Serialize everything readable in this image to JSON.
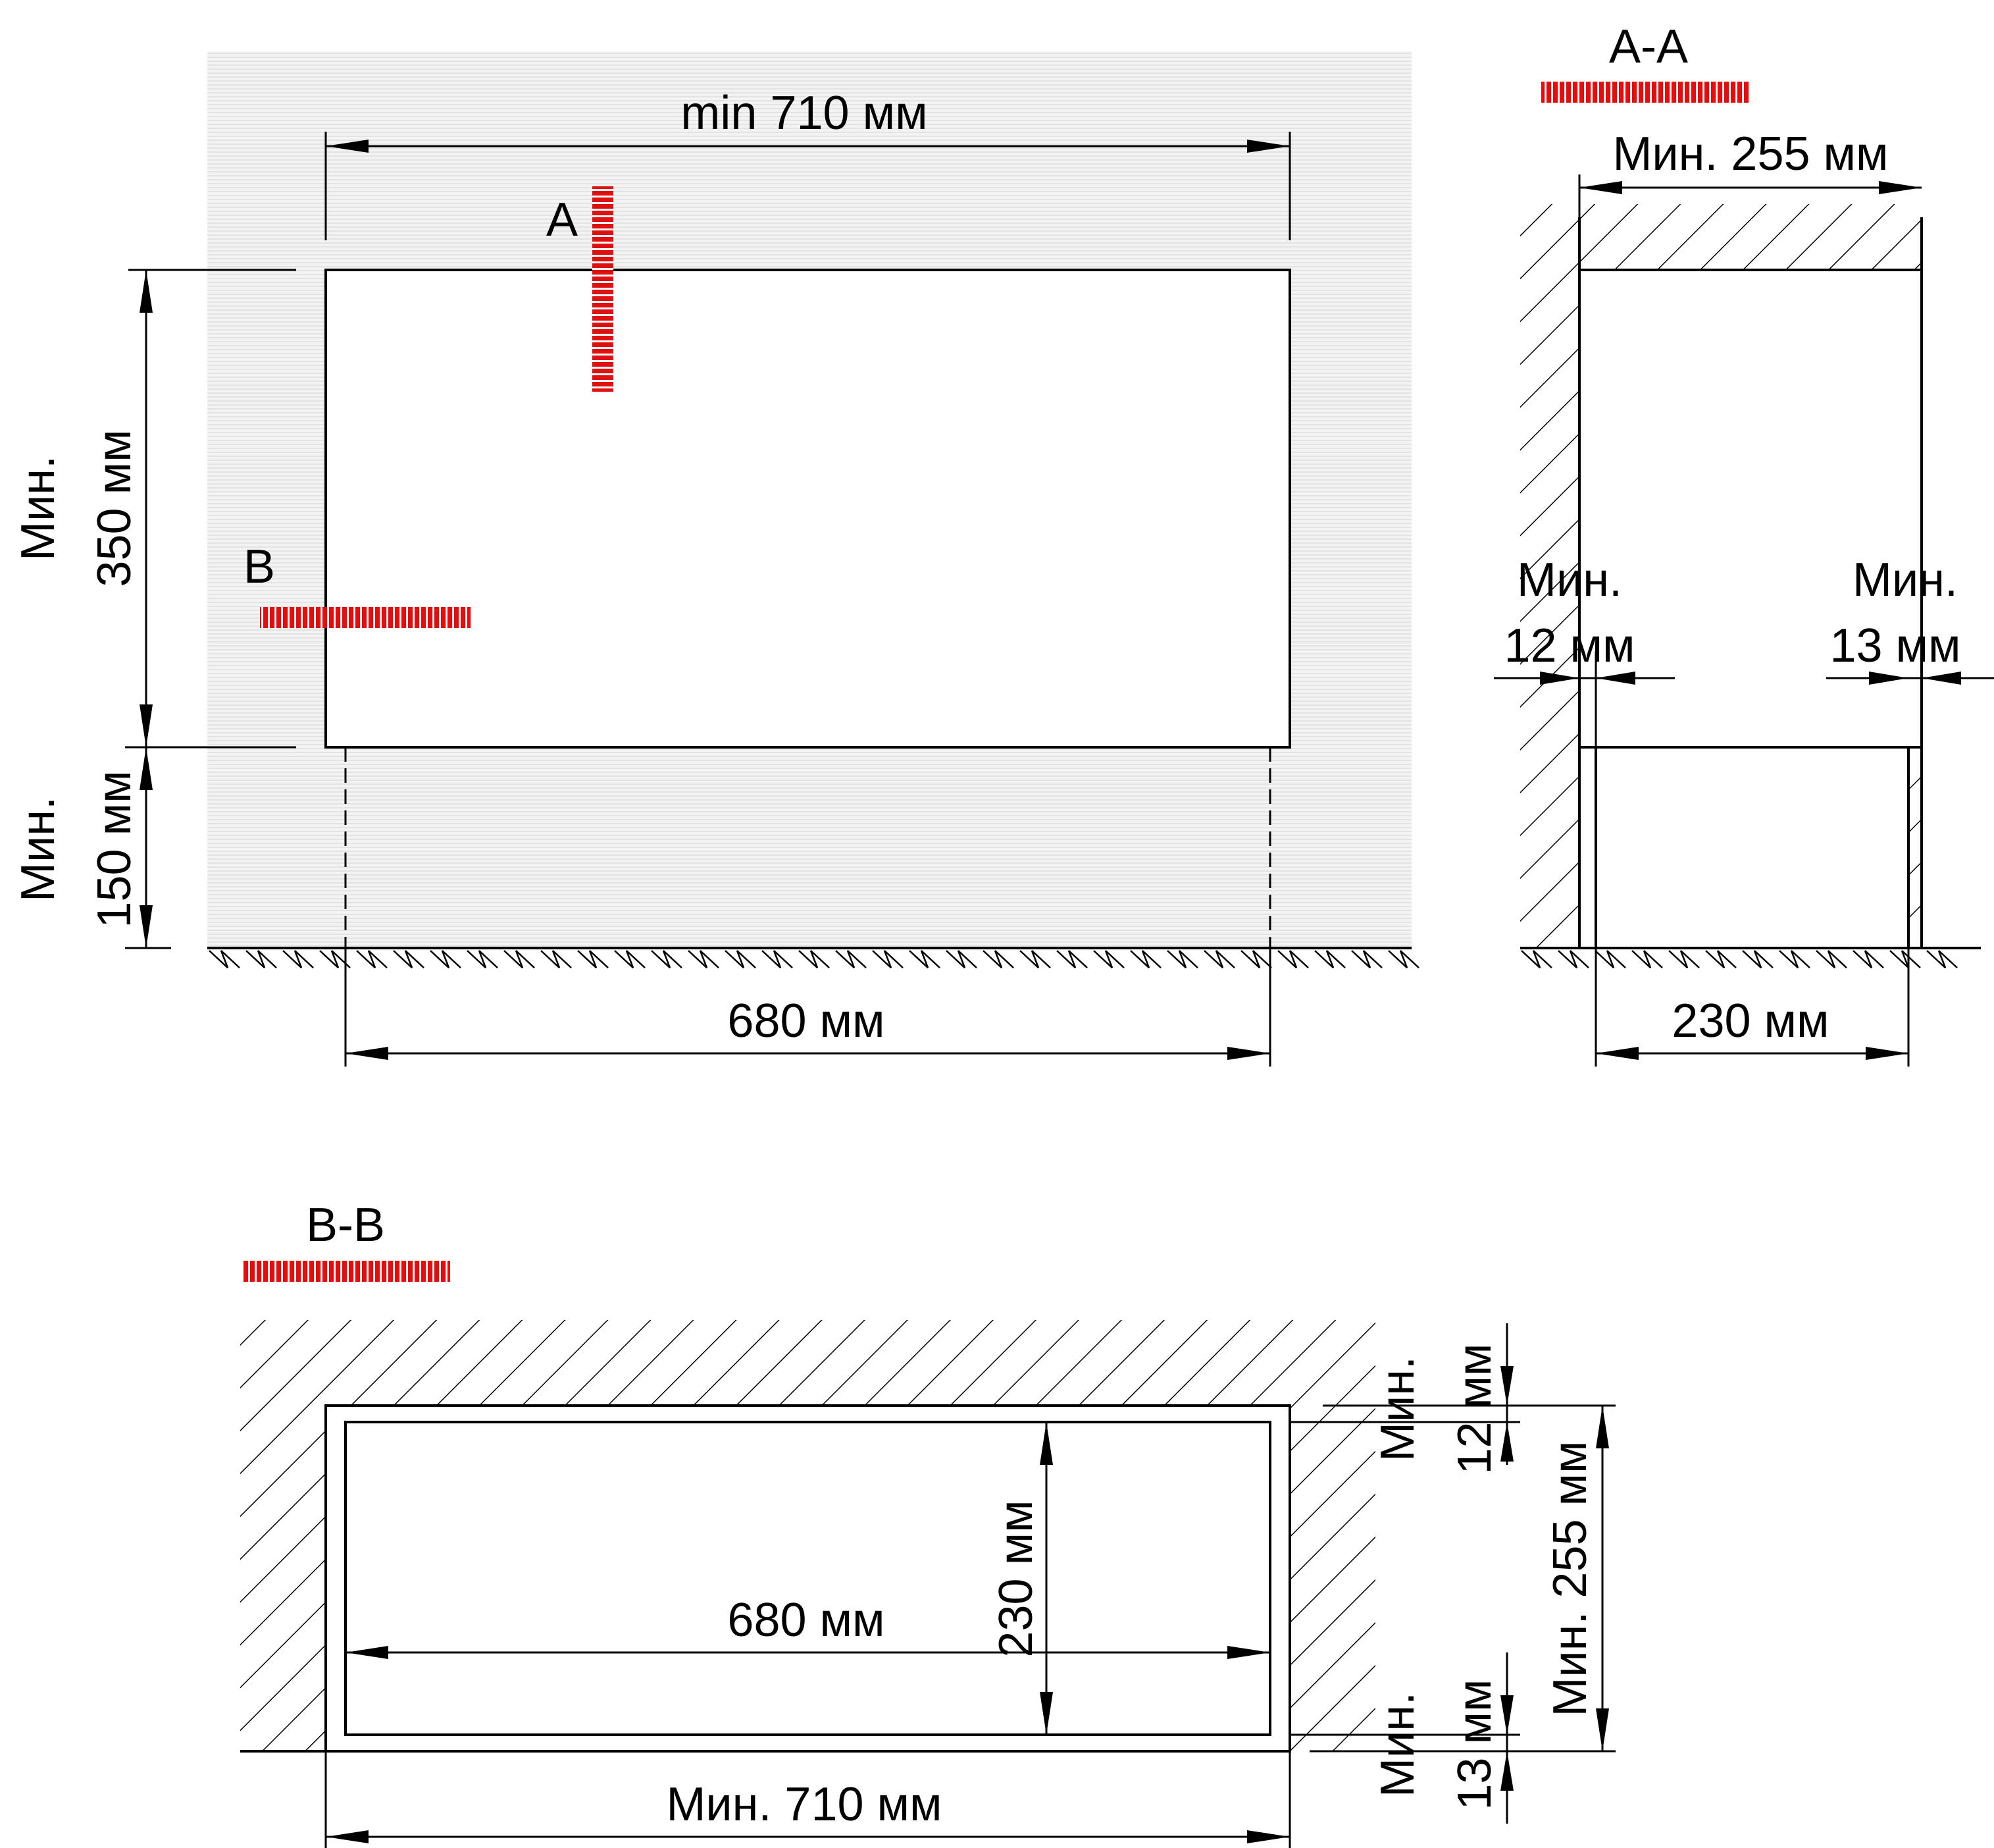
{
  "colors": {
    "line": "#000000",
    "section_marker": "#e01010",
    "wall_texture": "#eeeeee"
  },
  "front_view": {
    "width_label": "min 710 мм",
    "height_label": "Мин. 350 мм",
    "height_label_line1": "Мин.",
    "height_label_line2": "350 мм",
    "floor_gap_label_line1": "Мин.",
    "floor_gap_label_line2": "150 мм",
    "leg_span_label": "680 мм",
    "section_a_letter": "A",
    "section_b_letter": "B"
  },
  "section_aa": {
    "title": "A-A",
    "width_label": "Мин. 255 мм",
    "left_gap_line1": "Мин.",
    "left_gap_line2": "12 мм",
    "right_gap_line1": "Мин.",
    "right_gap_line2": "13 мм",
    "depth_label": "230 мм"
  },
  "section_bb": {
    "title": "B-B",
    "inner_width_label": "680 мм",
    "inner_depth_label": "230 мм",
    "outer_width_label": "Мин. 710 мм",
    "outer_depth_label": "Мин. 255 мм",
    "top_gap_line1": "Мин.",
    "top_gap_line2": "12 мм",
    "bottom_gap_line1": "Мин.",
    "bottom_gap_line2": "13 мм"
  }
}
